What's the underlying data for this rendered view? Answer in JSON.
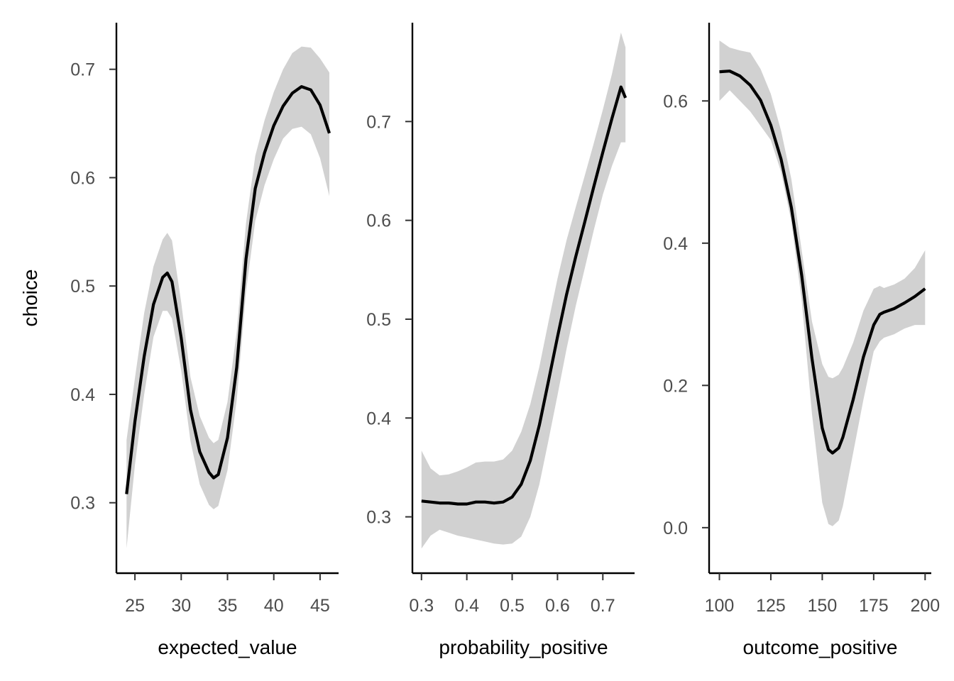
{
  "chart_data": {
    "type": "line",
    "ylabel": "choice",
    "legend": "none",
    "grid": false,
    "panels": [
      {
        "xlabel": "expected_value",
        "xlim": [
          23.0,
          47.0
        ],
        "ylim": [
          0.235,
          0.743
        ],
        "xticks": [
          25,
          30,
          35,
          40,
          45
        ],
        "xtick_labels": [
          "25",
          "30",
          "35",
          "40",
          "45"
        ],
        "yticks": [
          0.3,
          0.4,
          0.5,
          0.6,
          0.7
        ],
        "ytick_labels": [
          "0.3",
          "0.4",
          "0.5",
          "0.6",
          "0.7"
        ],
        "series": [
          {
            "x": [
              24.1,
              25.0,
              26.0,
              27.0,
              28.0,
              28.5,
              29.0,
              30.0,
              31.0,
              32.0,
              33.0,
              33.5,
              34.0,
              35.0,
              36.0,
              37.0,
              38.0,
              39.0,
              40.0,
              41.0,
              42.0,
              43.0,
              44.0,
              45.0,
              46.0
            ],
            "y": [
              0.308,
              0.375,
              0.435,
              0.483,
              0.508,
              0.512,
              0.504,
              0.452,
              0.386,
              0.347,
              0.328,
              0.323,
              0.326,
              0.36,
              0.425,
              0.525,
              0.59,
              0.623,
              0.648,
              0.666,
              0.678,
              0.684,
              0.681,
              0.667,
              0.641
            ],
            "ci_low": [
              0.258,
              0.335,
              0.4,
              0.453,
              0.477,
              0.477,
              0.47,
              0.422,
              0.357,
              0.317,
              0.298,
              0.294,
              0.297,
              0.33,
              0.395,
              0.495,
              0.56,
              0.593,
              0.617,
              0.636,
              0.645,
              0.647,
              0.64,
              0.618,
              0.583
            ],
            "ci_high": [
              0.358,
              0.415,
              0.475,
              0.518,
              0.543,
              0.549,
              0.542,
              0.485,
              0.416,
              0.38,
              0.36,
              0.355,
              0.358,
              0.393,
              0.458,
              0.558,
              0.62,
              0.653,
              0.679,
              0.7,
              0.715,
              0.721,
              0.72,
              0.71,
              0.697
            ]
          }
        ]
      },
      {
        "xlabel": "probability_positive",
        "xlim": [
          0.28,
          0.77
        ],
        "ylim": [
          0.243,
          0.8
        ],
        "xticks": [
          0.3,
          0.4,
          0.5,
          0.6,
          0.7
        ],
        "xtick_labels": [
          "0.3",
          "0.4",
          "0.5",
          "0.6",
          "0.7"
        ],
        "yticks": [
          0.3,
          0.4,
          0.5,
          0.6,
          0.7
        ],
        "ytick_labels": [
          "0.3",
          "0.4",
          "0.5",
          "0.6",
          "0.7"
        ],
        "series": [
          {
            "x": [
              0.3,
              0.32,
              0.34,
              0.36,
              0.38,
              0.4,
              0.42,
              0.44,
              0.46,
              0.48,
              0.5,
              0.52,
              0.54,
              0.56,
              0.58,
              0.6,
              0.62,
              0.64,
              0.66,
              0.68,
              0.7,
              0.72,
              0.74,
              0.75
            ],
            "y": [
              0.316,
              0.315,
              0.314,
              0.314,
              0.313,
              0.313,
              0.315,
              0.315,
              0.314,
              0.315,
              0.32,
              0.333,
              0.357,
              0.393,
              0.437,
              0.482,
              0.525,
              0.563,
              0.598,
              0.634,
              0.669,
              0.703,
              0.735,
              0.724
            ],
            "ci_low": [
              0.268,
              0.281,
              0.287,
              0.284,
              0.281,
              0.279,
              0.277,
              0.275,
              0.273,
              0.272,
              0.273,
              0.28,
              0.3,
              0.333,
              0.377,
              0.423,
              0.47,
              0.513,
              0.551,
              0.59,
              0.626,
              0.655,
              0.679,
              0.679
            ],
            "ci_high": [
              0.367,
              0.349,
              0.342,
              0.343,
              0.346,
              0.35,
              0.355,
              0.356,
              0.356,
              0.358,
              0.367,
              0.386,
              0.414,
              0.452,
              0.497,
              0.541,
              0.58,
              0.613,
              0.645,
              0.678,
              0.712,
              0.748,
              0.79,
              0.775
            ]
          }
        ]
      },
      {
        "xlabel": "outcome_positive",
        "xlim": [
          95,
          203
        ],
        "ylim": [
          -0.064,
          0.71
        ],
        "xticks": [
          100,
          125,
          150,
          175,
          200
        ],
        "xtick_labels": [
          "100",
          "125",
          "150",
          "175",
          "200"
        ],
        "yticks": [
          0.0,
          0.2,
          0.4,
          0.6
        ],
        "ytick_labels": [
          "0.0",
          "0.2",
          "0.4",
          "0.6"
        ],
        "series": [
          {
            "x": [
              100,
              105,
              110,
              115,
              120,
              125,
              130,
              135,
              140,
              145,
              150,
              153,
              155,
              158,
              160,
              165,
              170,
              175,
              178,
              180,
              185,
              190,
              195,
              200
            ],
            "y": [
              0.641,
              0.642,
              0.635,
              0.622,
              0.601,
              0.566,
              0.518,
              0.45,
              0.355,
              0.238,
              0.14,
              0.11,
              0.105,
              0.112,
              0.127,
              0.18,
              0.24,
              0.285,
              0.3,
              0.303,
              0.308,
              0.316,
              0.325,
              0.336
            ],
            "ci_low": [
              0.6,
              0.615,
              0.6,
              0.585,
              0.565,
              0.545,
              0.5,
              0.43,
              0.32,
              0.16,
              0.035,
              0.005,
              0.002,
              0.01,
              0.03,
              0.105,
              0.18,
              0.248,
              0.262,
              0.267,
              0.272,
              0.28,
              0.285,
              0.285
            ],
            "ci_high": [
              0.685,
              0.675,
              0.671,
              0.668,
              0.645,
              0.61,
              0.558,
              0.49,
              0.39,
              0.29,
              0.23,
              0.212,
              0.21,
              0.215,
              0.225,
              0.26,
              0.305,
              0.336,
              0.34,
              0.337,
              0.342,
              0.35,
              0.365,
              0.39
            ]
          }
        ]
      }
    ]
  }
}
